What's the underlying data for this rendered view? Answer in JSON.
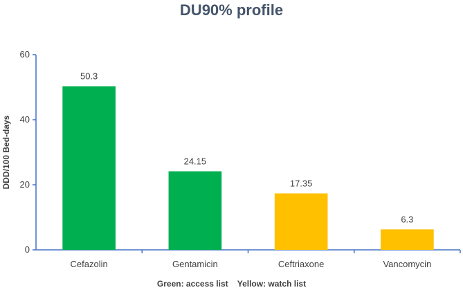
{
  "chart_data": {
    "type": "bar",
    "title": "DU90% profile",
    "xlabel": "",
    "ylabel": "DDD/100 Bed-days",
    "ylim": [
      0,
      60
    ],
    "yticks": [
      0,
      20,
      40,
      60
    ],
    "grid": false,
    "categories": [
      "Cefazolin",
      "Gentamicin",
      "Ceftriaxone",
      "Vancomycin"
    ],
    "values": [
      50.3,
      24.15,
      17.35,
      6.3
    ],
    "data_labels": [
      "50.3",
      "24.15",
      "17.35",
      "6.3"
    ],
    "bar_colors": [
      "#00b050",
      "#00b050",
      "#ffc000",
      "#ffc000"
    ],
    "axis_color": "#4472c4",
    "footnote": "Green: access list    Yellow: watch list"
  }
}
